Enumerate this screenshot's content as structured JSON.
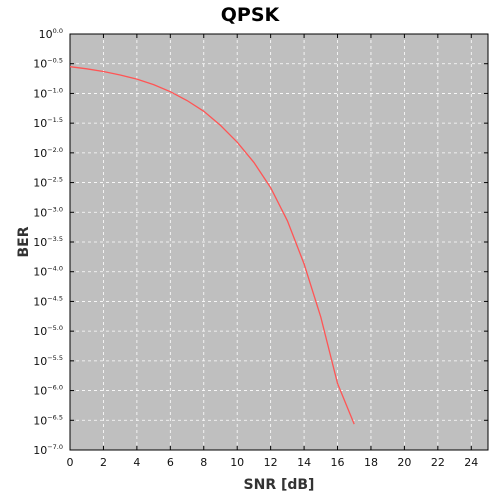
{
  "chart_data": {
    "type": "line",
    "title": "QPSK",
    "xlabel": "SNR [dB]",
    "ylabel": "BER",
    "xlim": [
      0,
      25
    ],
    "ylim_log10": [
      -7.0,
      0.0
    ],
    "yscale": "log",
    "grid": true,
    "background_color": "#bfbfbf",
    "line_color": "#ff5555",
    "x_ticks": [
      "0",
      "2",
      "4",
      "6",
      "8",
      "10",
      "12",
      "14",
      "16",
      "18",
      "20",
      "22",
      "24"
    ],
    "y_ticks": [
      {
        "base": "10",
        "exp": "0.0"
      },
      {
        "base": "10",
        "exp": "−0.5"
      },
      {
        "base": "10",
        "exp": "−1.0"
      },
      {
        "base": "10",
        "exp": "−1.5"
      },
      {
        "base": "10",
        "exp": "−2.0"
      },
      {
        "base": "10",
        "exp": "−2.5"
      },
      {
        "base": "10",
        "exp": "−3.0"
      },
      {
        "base": "10",
        "exp": "−3.5"
      },
      {
        "base": "10",
        "exp": "−4.0"
      },
      {
        "base": "10",
        "exp": "−4.5"
      },
      {
        "base": "10",
        "exp": "−5.0"
      },
      {
        "base": "10",
        "exp": "−5.5"
      },
      {
        "base": "10",
        "exp": "−6.0"
      },
      {
        "base": "10",
        "exp": "−6.5"
      },
      {
        "base": "10",
        "exp": "−7.0"
      }
    ],
    "series": [
      {
        "x": [
          0,
          1,
          2,
          3,
          4,
          5,
          6,
          7,
          8,
          9,
          10,
          11,
          12,
          13,
          14,
          15,
          16,
          17
        ],
        "y": [
          0.282,
          0.26,
          0.234,
          0.204,
          0.174,
          0.141,
          0.107,
          0.076,
          0.05,
          0.029,
          0.0151,
          0.0069,
          0.0026,
          0.00072,
          0.000135,
          1.72e-05,
          1.32e-06,
          2.73e-07
        ]
      }
    ]
  }
}
